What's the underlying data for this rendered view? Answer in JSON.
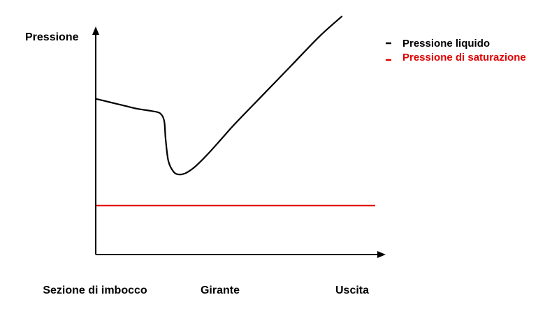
{
  "chart_data": {
    "type": "line",
    "ylabel": "Pressione",
    "xlabel": "",
    "x_ticks": [
      "Sezione di imbocco",
      "Girante",
      "Uscita"
    ],
    "grid": false,
    "legend_position": "top-right",
    "xlim": [
      0,
      1
    ],
    "ylim": [
      0,
      1
    ],
    "series": [
      {
        "name": "Pressione liquido",
        "color": "#000000",
        "x": [
          0,
          0.05,
          0.1,
          0.15,
          0.2,
          0.23,
          0.245,
          0.25,
          0.26,
          0.28,
          0.3,
          0.32,
          0.34,
          0.36,
          0.4,
          0.45,
          0.5,
          0.6,
          0.7,
          0.8,
          0.88
        ],
        "y": [
          0.7,
          0.685,
          0.67,
          0.655,
          0.645,
          0.635,
          0.6,
          0.52,
          0.42,
          0.37,
          0.36,
          0.365,
          0.38,
          0.4,
          0.45,
          0.52,
          0.59,
          0.72,
          0.85,
          0.98,
          1.07
        ]
      },
      {
        "name": "Pressione di saturazione",
        "color": "#e10000",
        "x": [
          0,
          1
        ],
        "y": [
          0.22,
          0.22
        ]
      }
    ]
  }
}
